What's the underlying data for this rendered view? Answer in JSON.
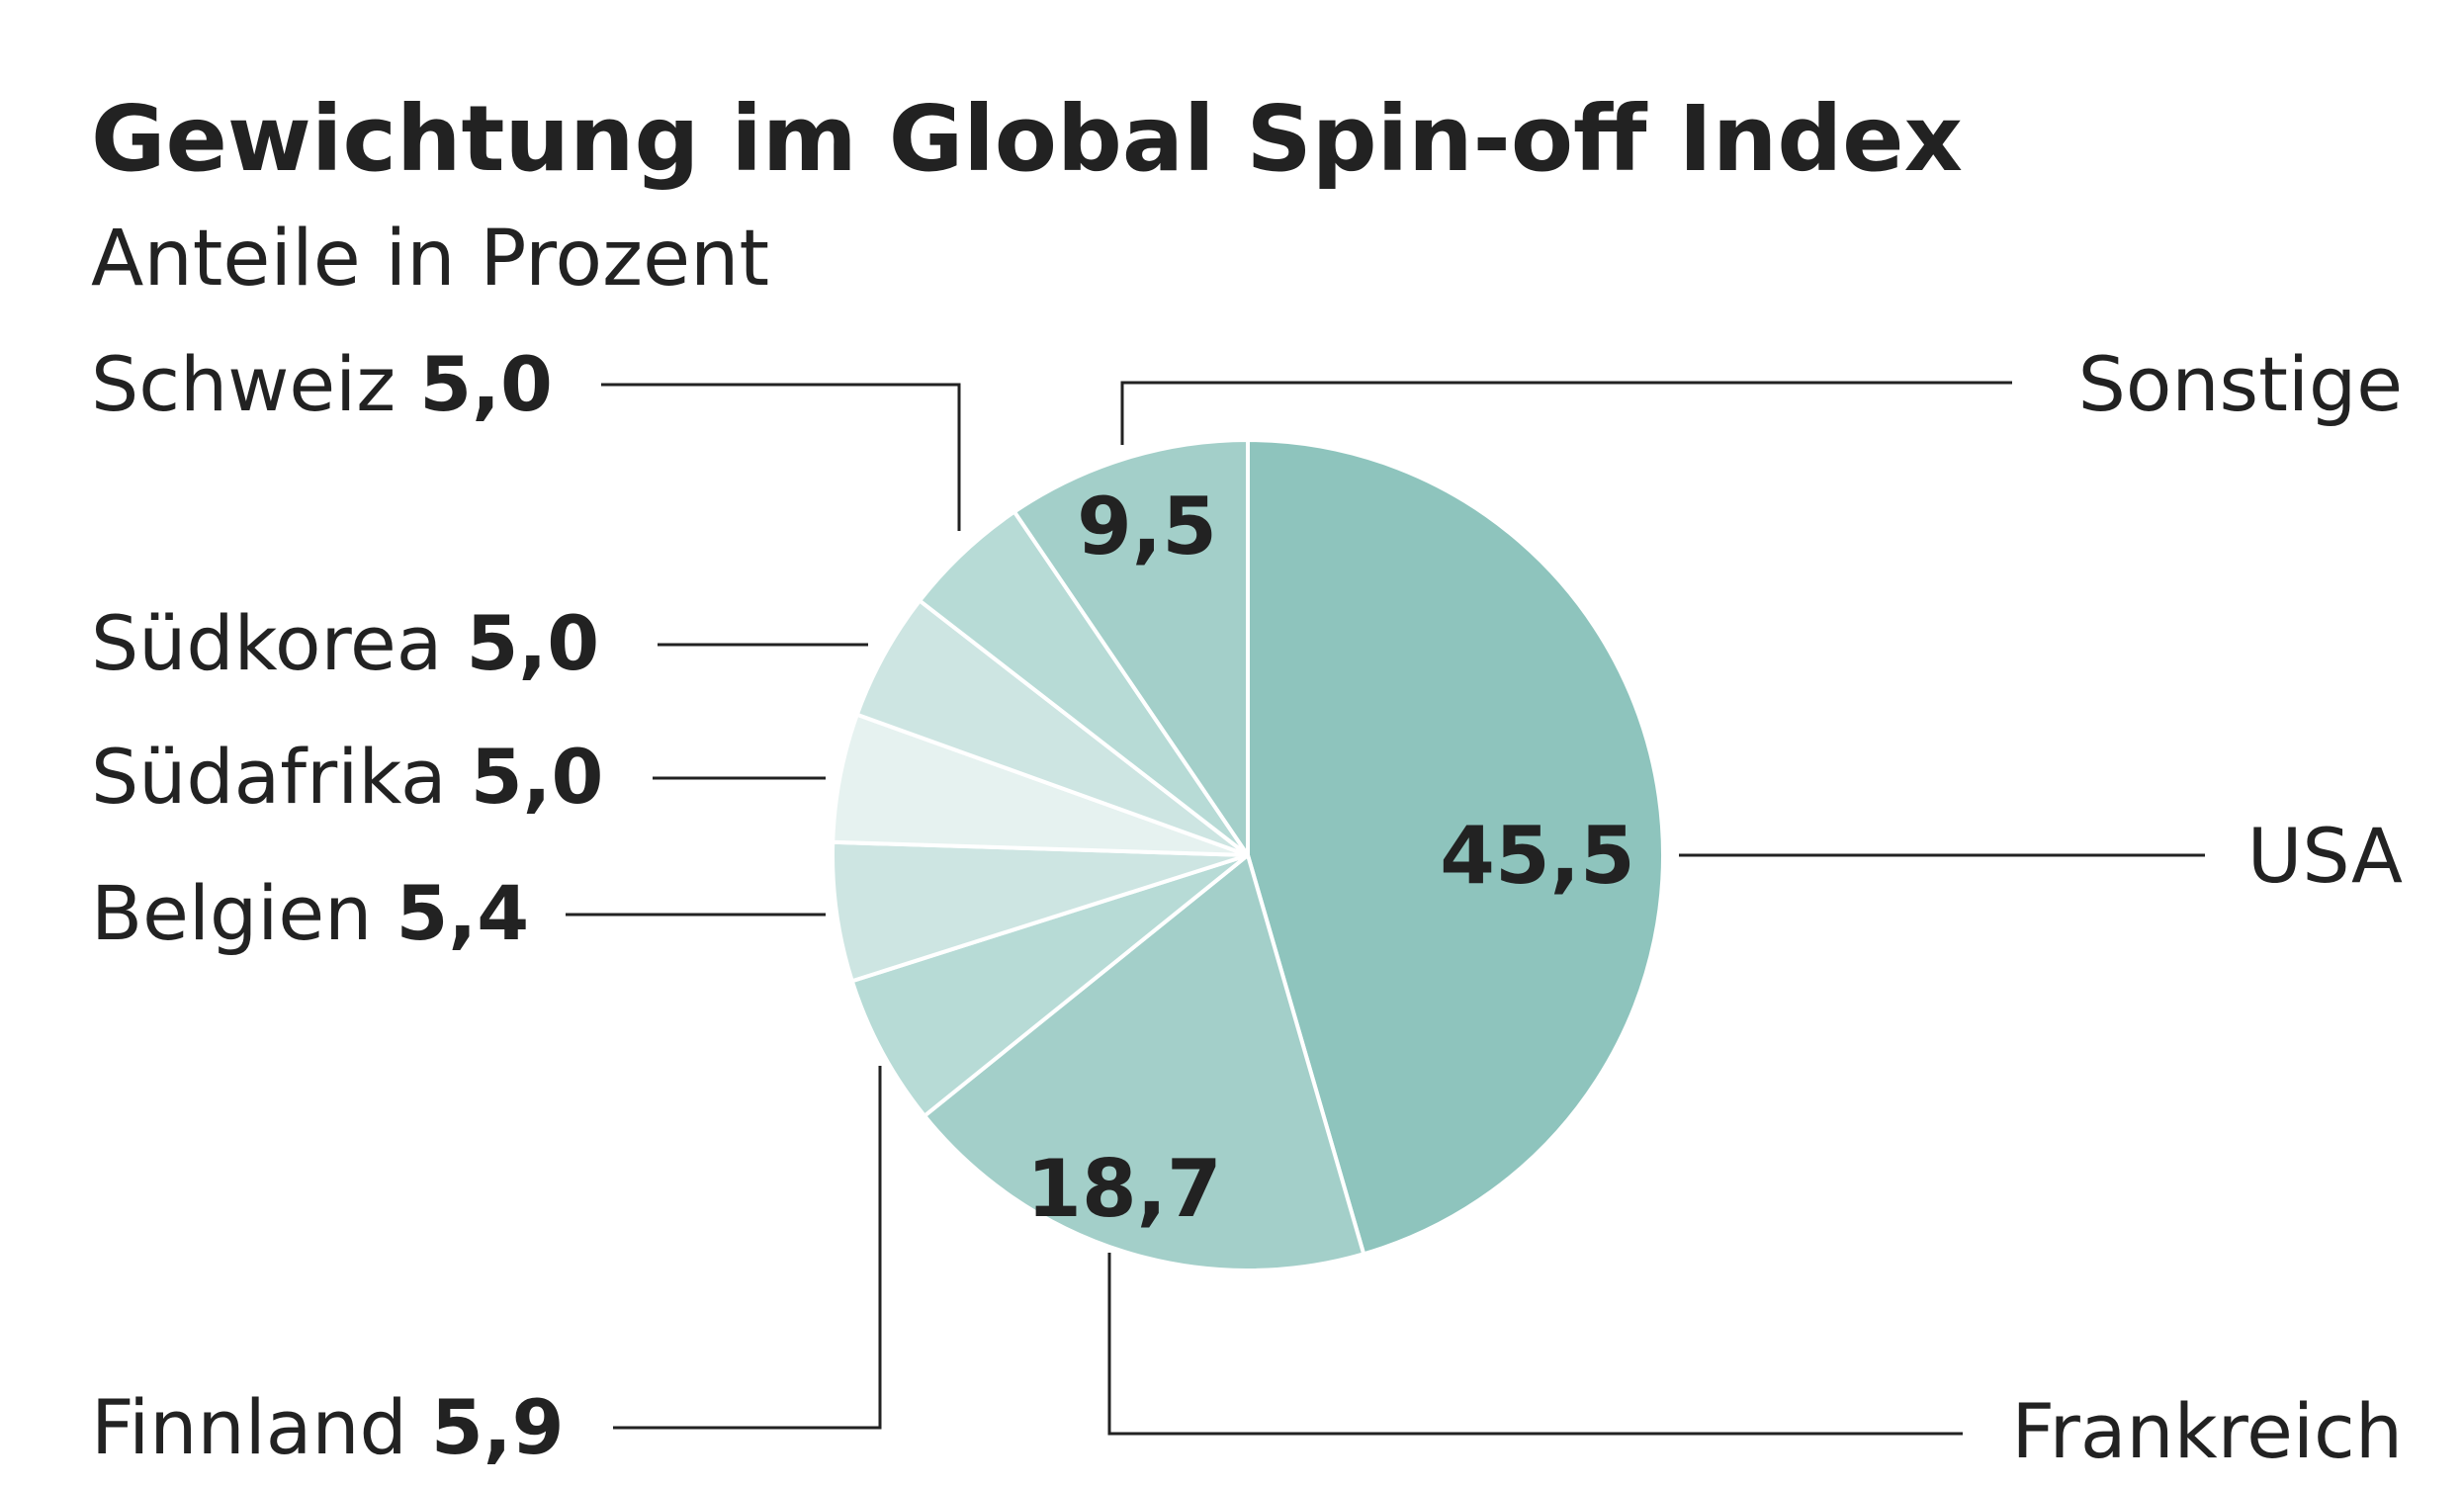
{
  "chart_data": {
    "type": "pie",
    "title": "Gewichtung im Global Spin-off Index",
    "subtitle": "Anteile in Prozent",
    "slices": [
      {
        "name": "USA",
        "value": 45.5,
        "display": "45,5",
        "color": "#8ec4bd"
      },
      {
        "name": "Frankreich",
        "value": 18.7,
        "display": "18,7",
        "color": "#a3cfc9"
      },
      {
        "name": "Finnland",
        "value": 5.9,
        "display": "5,9",
        "color": "#b7dbd6"
      },
      {
        "name": "Belgien",
        "value": 5.4,
        "display": "5,4",
        "color": "#cde5e2"
      },
      {
        "name": "Südafrika",
        "value": 5.0,
        "display": "5,0",
        "color": "#e6f2f0"
      },
      {
        "name": "Südkorea",
        "value": 5.0,
        "display": "5,0",
        "color": "#cde5e2"
      },
      {
        "name": "Schweiz",
        "value": 5.0,
        "display": "5,0",
        "color": "#b7dbd6"
      },
      {
        "name": "Sonstige",
        "value": 9.5,
        "display": "9,5",
        "color": "#a3cfc9"
      }
    ]
  }
}
